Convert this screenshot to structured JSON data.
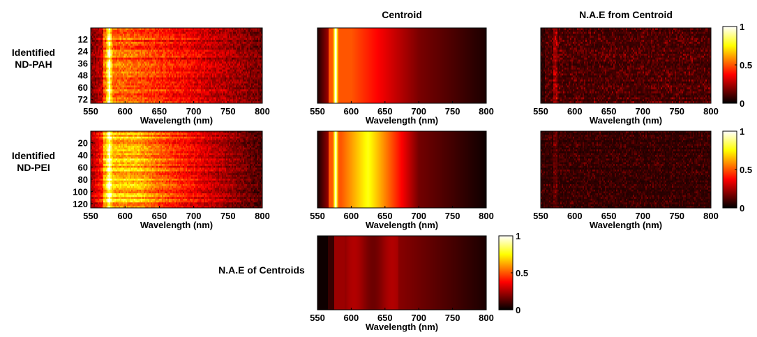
{
  "chart_data": [
    {
      "id": "pah-spectra",
      "type": "heatmap",
      "title": "",
      "row_label": [
        "Identified",
        "ND-PAH"
      ],
      "xlabel": "Wavelength (nm)",
      "ylabel": "",
      "x_ticks": [
        550,
        600,
        650,
        700,
        750,
        800
      ],
      "y_ticks": [
        12,
        24,
        36,
        48,
        60,
        72
      ],
      "xlim": [
        550,
        800
      ],
      "ylim": [
        1,
        76
      ],
      "rows": 76,
      "peak_wavelength_nm": 577,
      "colormap": "hot"
    },
    {
      "id": "pah-centroid",
      "type": "heatmap",
      "title": "Centroid",
      "xlabel": "Wavelength (nm)",
      "x_ticks": [
        550,
        600,
        650,
        700,
        750,
        800
      ],
      "xlim": [
        550,
        800
      ],
      "peak_wavelength_nm": 577,
      "colormap": "hot"
    },
    {
      "id": "pah-nae",
      "type": "heatmap",
      "title": "N.A.E from Centroid",
      "xlabel": "Wavelength (nm)",
      "x_ticks": [
        550,
        600,
        650,
        700,
        750,
        800
      ],
      "xlim": [
        550,
        800
      ],
      "colorbar_ticks": [
        "1",
        "0.5",
        "0"
      ],
      "colorbar_range": [
        0,
        1
      ],
      "colormap": "hot"
    },
    {
      "id": "pei-spectra",
      "type": "heatmap",
      "title": "",
      "row_label": [
        "Identified",
        "ND-PEI"
      ],
      "xlabel": "Wavelength (nm)",
      "ylabel": "",
      "x_ticks": [
        550,
        600,
        650,
        700,
        750,
        800
      ],
      "y_ticks": [
        20,
        40,
        60,
        80,
        100,
        120
      ],
      "xlim": [
        550,
        800
      ],
      "ylim": [
        1,
        127
      ],
      "rows": 127,
      "peak_wavelength_nm": 577,
      "colormap": "hot"
    },
    {
      "id": "pei-centroid",
      "type": "heatmap",
      "title": "",
      "xlabel": "Wavelength (nm)",
      "x_ticks": [
        550,
        600,
        650,
        700,
        750,
        800
      ],
      "xlim": [
        550,
        800
      ],
      "peak_wavelength_nm": 577,
      "colormap": "hot"
    },
    {
      "id": "pei-nae",
      "type": "heatmap",
      "title": "",
      "xlabel": "Wavelength (nm)",
      "x_ticks": [
        550,
        600,
        650,
        700,
        750,
        800
      ],
      "xlim": [
        550,
        800
      ],
      "colorbar_ticks": [
        "1",
        "0.5",
        "0"
      ],
      "colorbar_range": [
        0,
        1
      ],
      "colormap": "hot"
    },
    {
      "id": "nae-centroids",
      "type": "heatmap",
      "title": "",
      "row_label": [
        "N.A.E of Centroids"
      ],
      "xlabel": "Wavelength (nm)",
      "x_ticks": [
        550,
        600,
        650,
        700,
        750,
        800
      ],
      "xlim": [
        550,
        800
      ],
      "colorbar_ticks": [
        "1",
        "0.5",
        "0"
      ],
      "colorbar_range": [
        0,
        1
      ],
      "colormap": "hot"
    }
  ]
}
